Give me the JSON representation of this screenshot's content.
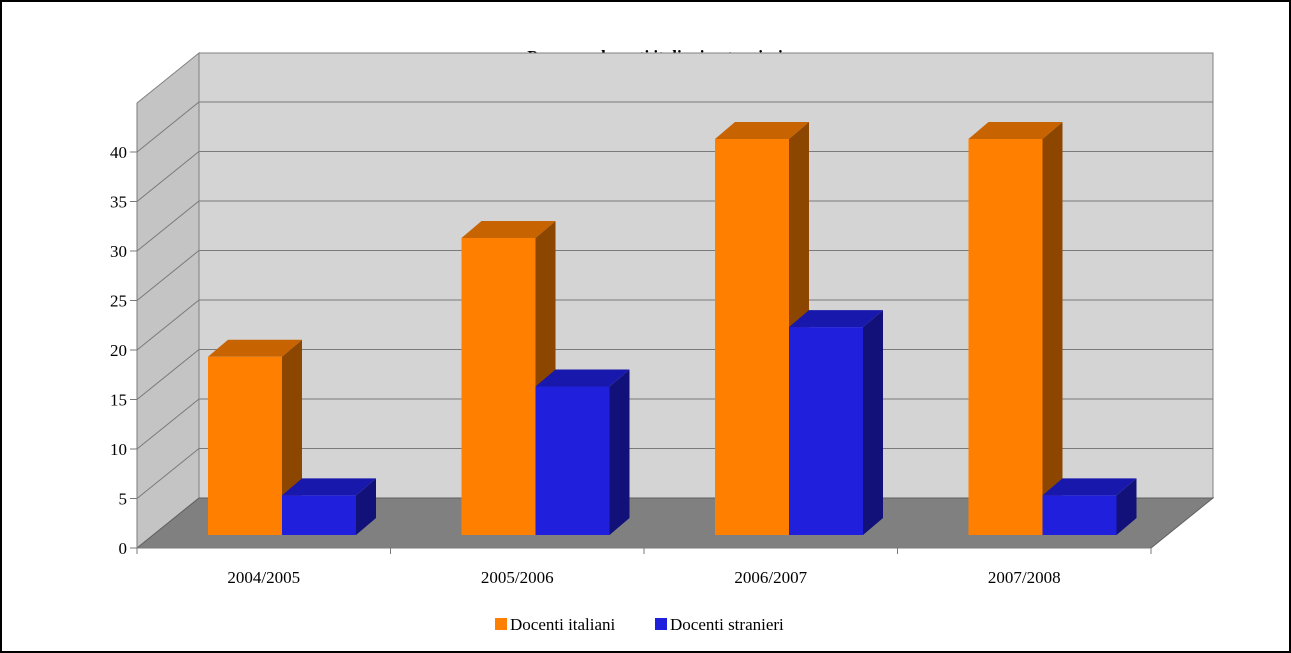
{
  "chart_data": {
    "type": "bar",
    "title": "Presenza docenti italiani e stranieri",
    "categories": [
      "2004/2005",
      "2005/2006",
      "2006/2007",
      "2007/2008"
    ],
    "series": [
      {
        "name": "Docenti italiani",
        "values": [
          18,
          30,
          40,
          40
        ],
        "color": "#ff7f00"
      },
      {
        "name": "Docenti stranieri",
        "values": [
          4,
          15,
          21,
          4
        ],
        "color": "#1f1fdc"
      }
    ],
    "yticks": [
      0,
      5,
      10,
      15,
      20,
      25,
      30,
      35,
      40
    ],
    "ylim": [
      0,
      40
    ],
    "grid": true,
    "legend": "bottom",
    "three_d": true
  }
}
